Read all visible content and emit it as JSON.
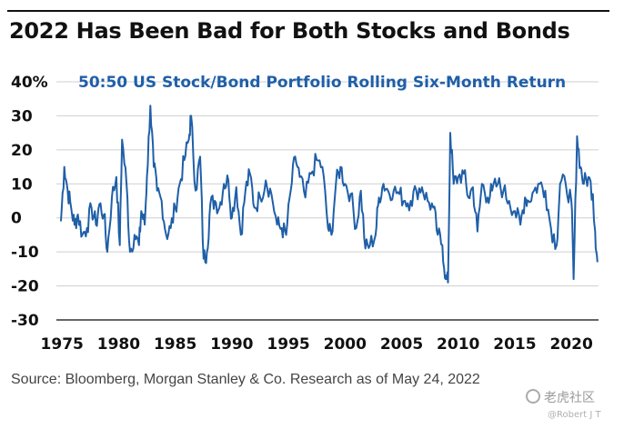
{
  "chart_data": {
    "type": "line",
    "title": "2022 Has Been Bad for Both Stocks and Bonds",
    "subtitle": "50:50 US Stock/Bond Portfolio Rolling Six-Month Return",
    "xlabel": "",
    "ylabel": "",
    "xlim": [
      1974.5,
      2022.4
    ],
    "ylim": [
      -30,
      40
    ],
    "x_ticks": [
      "1975",
      "1980",
      "1985",
      "1990",
      "1995",
      "2000",
      "2005",
      "2010",
      "2015",
      "2020"
    ],
    "y_ticks": [
      "40%",
      "30",
      "20",
      "10",
      "0",
      "-10",
      "-20",
      "-30"
    ],
    "grid": true,
    "line_color": "#1f5fa8",
    "series": [
      {
        "name": "50:50 US Stock/Bond Portfolio Rolling Six-Month Return",
        "x": [
          1974.9,
          1975.2,
          1975.5,
          1975.8,
          1976.1,
          1976.4,
          1976.8,
          1977.2,
          1977.6,
          1978.0,
          1978.3,
          1978.7,
          1979.0,
          1979.4,
          1979.8,
          1980.1,
          1980.3,
          1980.7,
          1981.0,
          1981.4,
          1981.8,
          1982.0,
          1982.3,
          1982.5,
          1982.8,
          1983.1,
          1983.4,
          1983.8,
          1984.2,
          1984.6,
          1985.0,
          1985.4,
          1985.8,
          1986.2,
          1986.4,
          1986.8,
          1987.2,
          1987.5,
          1987.8,
          1988.1,
          1988.5,
          1988.9,
          1989.3,
          1989.7,
          1990.0,
          1990.4,
          1990.8,
          1991.2,
          1991.6,
          1992.0,
          1992.5,
          1993.0,
          1993.5,
          1994.0,
          1994.4,
          1994.8,
          1995.2,
          1995.6,
          1996.0,
          1996.5,
          1997.0,
          1997.5,
          1998.0,
          1998.5,
          1998.8,
          1999.2,
          1999.6,
          2000.0,
          2000.5,
          2001.0,
          2001.4,
          2001.8,
          2002.2,
          2002.7,
          2003.0,
          2003.4,
          2003.8,
          2004.3,
          2004.8,
          2005.3,
          2005.8,
          2006.3,
          2006.8,
          2007.3,
          2007.8,
          2008.2,
          2008.6,
          2008.9,
          2009.1,
          2009.3,
          2009.6,
          2010.0,
          2010.5,
          2010.9,
          2011.3,
          2011.7,
          2012.1,
          2012.6,
          2013.0,
          2013.5,
          2014.0,
          2014.5,
          2015.0,
          2015.5,
          2015.9,
          2016.2,
          2016.7,
          2017.2,
          2017.7,
          2018.2,
          2018.7,
          2019.0,
          2019.5,
          2020.0,
          2020.2,
          2020.5,
          2020.8,
          2021.1,
          2021.5,
          2021.9,
          2022.1,
          2022.3
        ],
        "values": [
          -1,
          15,
          8,
          3,
          -2,
          1,
          -5,
          -3,
          3,
          -2,
          4,
          1,
          -10,
          6,
          12,
          -8,
          23,
          10,
          -10,
          -5,
          -8,
          2,
          -2,
          12,
          33,
          15,
          8,
          5,
          -5,
          -3,
          3,
          10,
          17,
          23,
          30,
          8,
          18,
          -12,
          -10,
          4,
          5,
          3,
          10,
          11,
          0,
          9,
          -5,
          8,
          13,
          3,
          6,
          11,
          7,
          -2,
          -3,
          -5,
          8,
          18,
          12,
          6,
          13,
          17,
          15,
          -3,
          -5,
          10,
          15,
          10,
          7,
          -3,
          8,
          -9,
          -8,
          -5,
          6,
          10,
          8,
          8,
          7,
          5,
          5,
          8,
          9,
          5,
          3,
          -5,
          -8,
          -18,
          -19,
          25,
          10,
          12,
          13,
          6,
          9,
          -4,
          10,
          6,
          8,
          10,
          8,
          5,
          2,
          -2,
          6,
          5,
          8,
          10,
          8,
          -3,
          -8,
          10,
          10,
          5,
          -18,
          24,
          15,
          10,
          12,
          7,
          -4,
          -13
        ]
      }
    ]
  },
  "source": "Source: Bloomberg, Morgan Stanley & Co. Research as of May 24, 2022",
  "watermark": {
    "brand": "老虎社区",
    "handle": "@Robert J T"
  }
}
